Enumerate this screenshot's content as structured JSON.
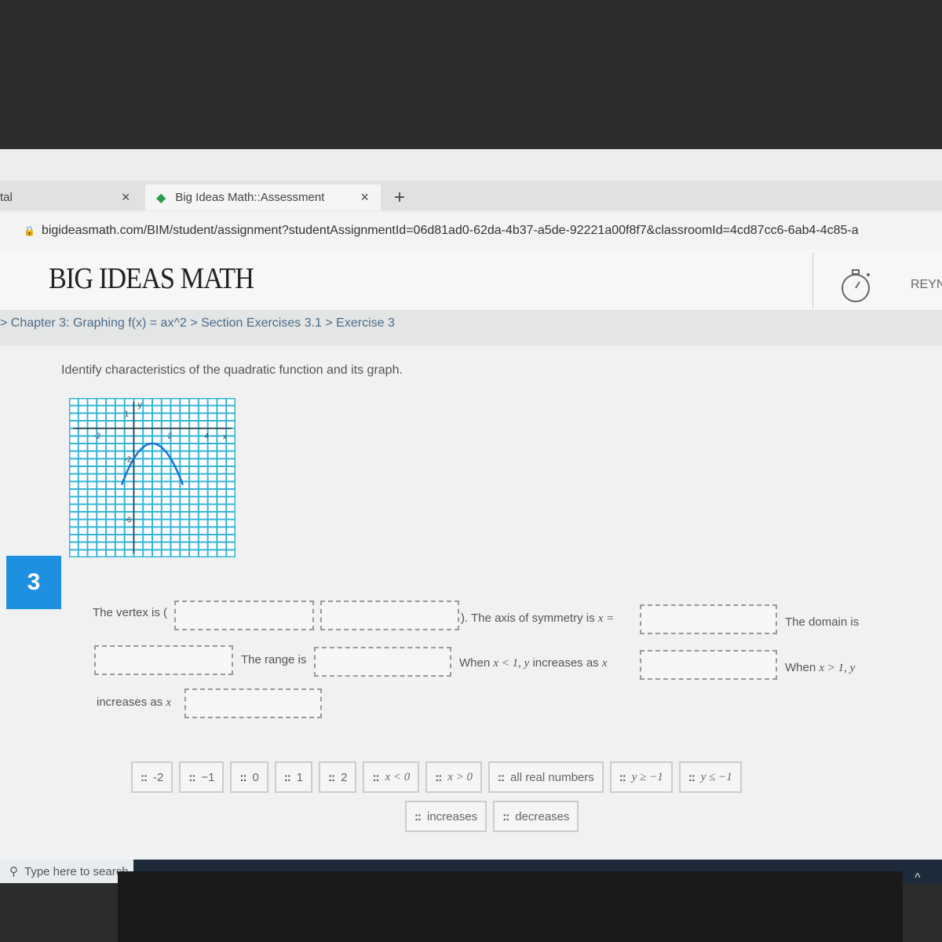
{
  "browser": {
    "prev_tab_label": "tal",
    "active_tab_label": "Big Ideas Math::Assessment",
    "close_glyph": "×",
    "new_tab_glyph": "+",
    "url": "bigideasmath.com/BIM/student/assignment?studentAssignmentId=06d81ad0-62da-4b37-a5de-92221a00f8f7&classroomId=4cd87cc6-6ab4-4c85-a"
  },
  "header": {
    "logo": "BIG IDEAS MATH",
    "user": "REYN",
    "timer_icon": "stopwatch-icon"
  },
  "breadcrumb": "> Chapter 3: Graphing f(x) = ax^2 > Section Exercises 3.1 > Exercise 3",
  "question": {
    "instruction": "Identify characteristics of the quadratic function and its graph.",
    "number": "3",
    "graph": {
      "x_ticks": [
        "-2",
        "2",
        "4"
      ],
      "x_label": "x",
      "y_ticks": [
        "1",
        "-2",
        "-6"
      ],
      "y_label": "y",
      "function": "y = -(x-1)^2 - 1",
      "vertex": [
        1,
        -1
      ],
      "a": -1,
      "x_range": [
        -3.5,
        5.5
      ],
      "y_range": [
        -8.5,
        2
      ],
      "curve_color": "#1a73d6",
      "grid_color": "#35b4d6"
    },
    "text": {
      "vertex": "The vertex is (",
      "axis": "). The axis of symmetry is ",
      "axis_math": "x =",
      "domain": "The domain is",
      "range": "The range is",
      "when_lt": "When ",
      "when_lt_math": "x < 1, y",
      "when_lt_tail": " increases as ",
      "x_math": "x",
      "when_gt": "When ",
      "when_gt_math": "x > 1, y",
      "increases_as": "increases as "
    },
    "choices": [
      "-2",
      "−1",
      "0",
      "1",
      "2",
      "x < 0",
      "x > 0",
      "all real numbers",
      "y ≥ −1",
      "y ≤ −1"
    ],
    "choices_row2": [
      "increases",
      "decreases"
    ]
  },
  "taskbar": {
    "search_placeholder": "Type here to search"
  }
}
